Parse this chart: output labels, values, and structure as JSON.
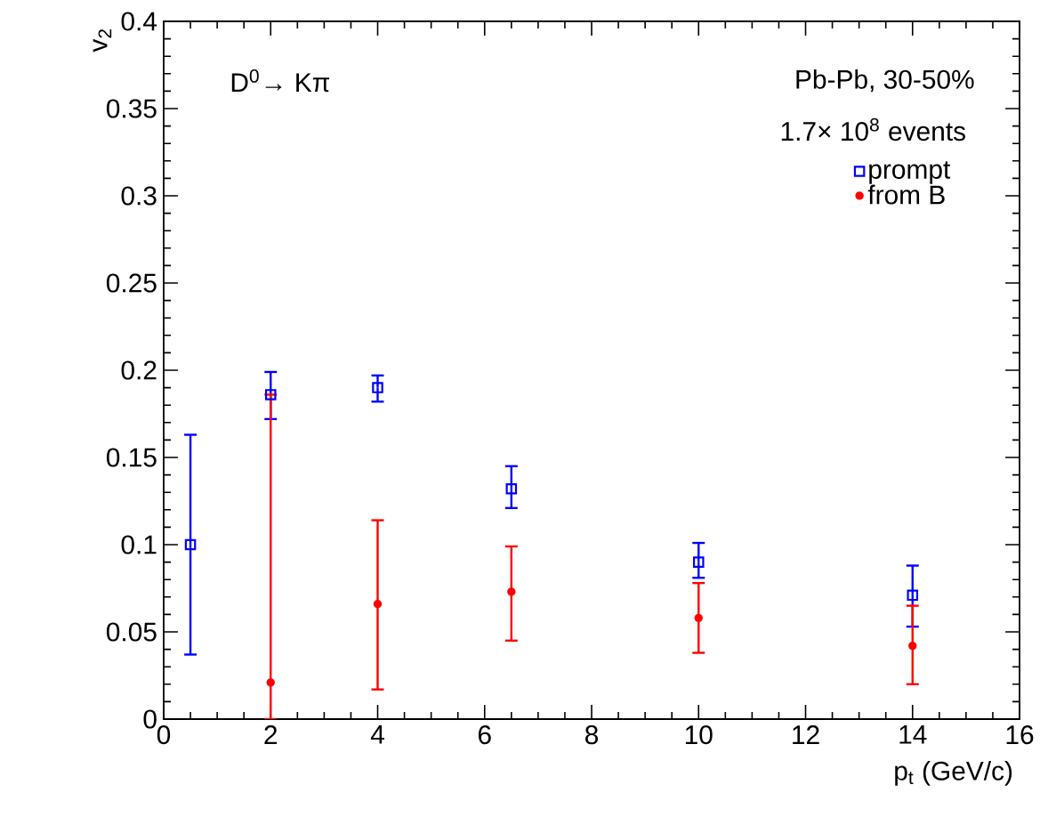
{
  "chart_data": {
    "type": "scatter",
    "xlabel": "p$_{t}$ (GeV/c)",
    "ylabel": "v$_{2}$",
    "annotations": [
      "D$^{0}$→ Kπ",
      "Pb-Pb, 30-50%",
      "1.7× 10$^{8}$ events"
    ],
    "xlim": [
      0,
      16
    ],
    "xticks": [
      0,
      2,
      4,
      6,
      8,
      10,
      12,
      14,
      16
    ],
    "ylim": [
      0,
      0.4
    ],
    "yticks": [
      0,
      0.05,
      0.1,
      0.15,
      0.2,
      0.25,
      0.3,
      0.35,
      0.4
    ],
    "grid": false,
    "legend": "top right",
    "series": [
      {
        "name": "prompt",
        "color": "#0000ff",
        "marker": "square",
        "x": [
          0.5,
          2,
          4,
          6.5,
          10,
          14
        ],
        "values": [
          0.1,
          0.186,
          0.19,
          0.132,
          0.09,
          0.071
        ],
        "errors": [
          [
            0.037,
            0.163
          ],
          [
            0.172,
            0.199
          ],
          [
            0.182,
            0.197
          ],
          [
            0.121,
            0.145
          ],
          [
            0.081,
            0.101
          ],
          [
            0.053,
            0.088
          ]
        ]
      },
      {
        "name": "from B",
        "color": "#ff0000",
        "marker": "circle",
        "x": [
          2,
          4,
          6.5,
          10,
          14
        ],
        "values": [
          0.021,
          0.066,
          0.073,
          0.058,
          0.042
        ],
        "errors": [
          [
            0,
            0.186
          ],
          [
            0.017,
            0.114
          ],
          [
            0.045,
            0.099
          ],
          [
            0.038,
            0.078
          ],
          [
            0.02,
            0.065
          ]
        ]
      }
    ]
  }
}
